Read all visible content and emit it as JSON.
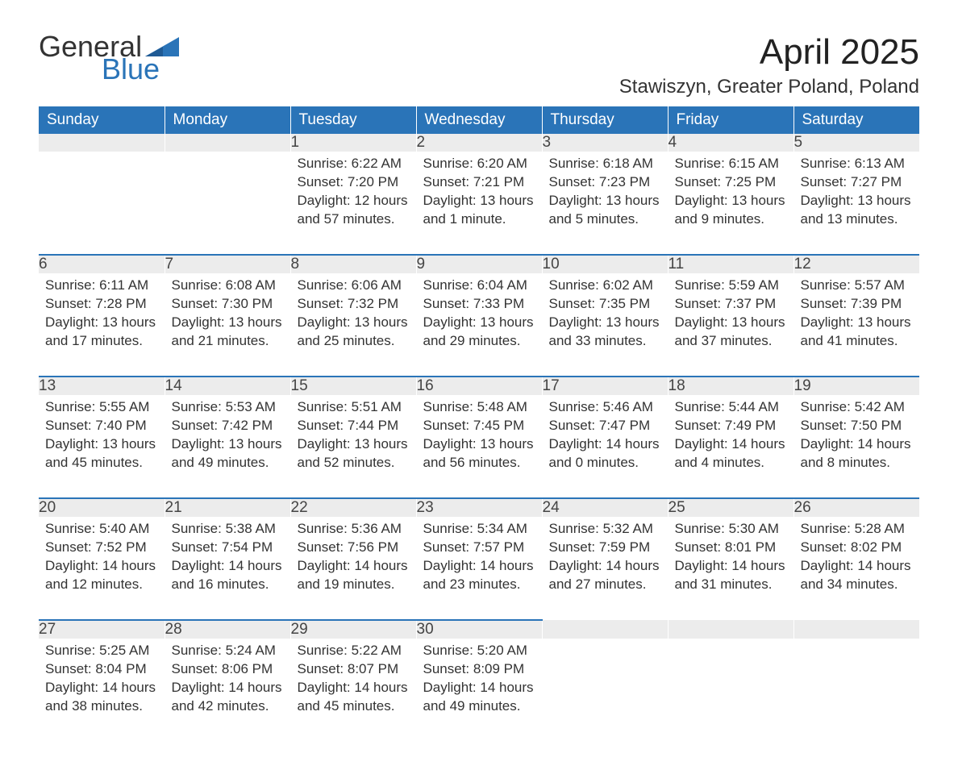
{
  "logo": {
    "general": "General",
    "blue": "Blue",
    "tri_color": "#2a74b8"
  },
  "title": "April 2025",
  "location": "Stawiszyn, Greater Poland, Poland",
  "colors": {
    "header_bg": "#2a74b8",
    "header_text": "#ffffff",
    "daynum_bg": "#ececec",
    "body_text": "#333333",
    "page_bg": "#ffffff"
  },
  "typography": {
    "title_fontsize": 44,
    "location_fontsize": 24,
    "header_fontsize": 19,
    "daynum_fontsize": 19,
    "cell_fontsize": 17
  },
  "day_headers": [
    "Sunday",
    "Monday",
    "Tuesday",
    "Wednesday",
    "Thursday",
    "Friday",
    "Saturday"
  ],
  "weeks": [
    [
      {
        "num": "",
        "sunrise": "",
        "sunset": "",
        "daylight1": "",
        "daylight2": ""
      },
      {
        "num": "",
        "sunrise": "",
        "sunset": "",
        "daylight1": "",
        "daylight2": ""
      },
      {
        "num": "1",
        "sunrise": "Sunrise: 6:22 AM",
        "sunset": "Sunset: 7:20 PM",
        "daylight1": "Daylight: 12 hours",
        "daylight2": "and 57 minutes."
      },
      {
        "num": "2",
        "sunrise": "Sunrise: 6:20 AM",
        "sunset": "Sunset: 7:21 PM",
        "daylight1": "Daylight: 13 hours",
        "daylight2": "and 1 minute."
      },
      {
        "num": "3",
        "sunrise": "Sunrise: 6:18 AM",
        "sunset": "Sunset: 7:23 PM",
        "daylight1": "Daylight: 13 hours",
        "daylight2": "and 5 minutes."
      },
      {
        "num": "4",
        "sunrise": "Sunrise: 6:15 AM",
        "sunset": "Sunset: 7:25 PM",
        "daylight1": "Daylight: 13 hours",
        "daylight2": "and 9 minutes."
      },
      {
        "num": "5",
        "sunrise": "Sunrise: 6:13 AM",
        "sunset": "Sunset: 7:27 PM",
        "daylight1": "Daylight: 13 hours",
        "daylight2": "and 13 minutes."
      }
    ],
    [
      {
        "num": "6",
        "sunrise": "Sunrise: 6:11 AM",
        "sunset": "Sunset: 7:28 PM",
        "daylight1": "Daylight: 13 hours",
        "daylight2": "and 17 minutes."
      },
      {
        "num": "7",
        "sunrise": "Sunrise: 6:08 AM",
        "sunset": "Sunset: 7:30 PM",
        "daylight1": "Daylight: 13 hours",
        "daylight2": "and 21 minutes."
      },
      {
        "num": "8",
        "sunrise": "Sunrise: 6:06 AM",
        "sunset": "Sunset: 7:32 PM",
        "daylight1": "Daylight: 13 hours",
        "daylight2": "and 25 minutes."
      },
      {
        "num": "9",
        "sunrise": "Sunrise: 6:04 AM",
        "sunset": "Sunset: 7:33 PM",
        "daylight1": "Daylight: 13 hours",
        "daylight2": "and 29 minutes."
      },
      {
        "num": "10",
        "sunrise": "Sunrise: 6:02 AM",
        "sunset": "Sunset: 7:35 PM",
        "daylight1": "Daylight: 13 hours",
        "daylight2": "and 33 minutes."
      },
      {
        "num": "11",
        "sunrise": "Sunrise: 5:59 AM",
        "sunset": "Sunset: 7:37 PM",
        "daylight1": "Daylight: 13 hours",
        "daylight2": "and 37 minutes."
      },
      {
        "num": "12",
        "sunrise": "Sunrise: 5:57 AM",
        "sunset": "Sunset: 7:39 PM",
        "daylight1": "Daylight: 13 hours",
        "daylight2": "and 41 minutes."
      }
    ],
    [
      {
        "num": "13",
        "sunrise": "Sunrise: 5:55 AM",
        "sunset": "Sunset: 7:40 PM",
        "daylight1": "Daylight: 13 hours",
        "daylight2": "and 45 minutes."
      },
      {
        "num": "14",
        "sunrise": "Sunrise: 5:53 AM",
        "sunset": "Sunset: 7:42 PM",
        "daylight1": "Daylight: 13 hours",
        "daylight2": "and 49 minutes."
      },
      {
        "num": "15",
        "sunrise": "Sunrise: 5:51 AM",
        "sunset": "Sunset: 7:44 PM",
        "daylight1": "Daylight: 13 hours",
        "daylight2": "and 52 minutes."
      },
      {
        "num": "16",
        "sunrise": "Sunrise: 5:48 AM",
        "sunset": "Sunset: 7:45 PM",
        "daylight1": "Daylight: 13 hours",
        "daylight2": "and 56 minutes."
      },
      {
        "num": "17",
        "sunrise": "Sunrise: 5:46 AM",
        "sunset": "Sunset: 7:47 PM",
        "daylight1": "Daylight: 14 hours",
        "daylight2": "and 0 minutes."
      },
      {
        "num": "18",
        "sunrise": "Sunrise: 5:44 AM",
        "sunset": "Sunset: 7:49 PM",
        "daylight1": "Daylight: 14 hours",
        "daylight2": "and 4 minutes."
      },
      {
        "num": "19",
        "sunrise": "Sunrise: 5:42 AM",
        "sunset": "Sunset: 7:50 PM",
        "daylight1": "Daylight: 14 hours",
        "daylight2": "and 8 minutes."
      }
    ],
    [
      {
        "num": "20",
        "sunrise": "Sunrise: 5:40 AM",
        "sunset": "Sunset: 7:52 PM",
        "daylight1": "Daylight: 14 hours",
        "daylight2": "and 12 minutes."
      },
      {
        "num": "21",
        "sunrise": "Sunrise: 5:38 AM",
        "sunset": "Sunset: 7:54 PM",
        "daylight1": "Daylight: 14 hours",
        "daylight2": "and 16 minutes."
      },
      {
        "num": "22",
        "sunrise": "Sunrise: 5:36 AM",
        "sunset": "Sunset: 7:56 PM",
        "daylight1": "Daylight: 14 hours",
        "daylight2": "and 19 minutes."
      },
      {
        "num": "23",
        "sunrise": "Sunrise: 5:34 AM",
        "sunset": "Sunset: 7:57 PM",
        "daylight1": "Daylight: 14 hours",
        "daylight2": "and 23 minutes."
      },
      {
        "num": "24",
        "sunrise": "Sunrise: 5:32 AM",
        "sunset": "Sunset: 7:59 PM",
        "daylight1": "Daylight: 14 hours",
        "daylight2": "and 27 minutes."
      },
      {
        "num": "25",
        "sunrise": "Sunrise: 5:30 AM",
        "sunset": "Sunset: 8:01 PM",
        "daylight1": "Daylight: 14 hours",
        "daylight2": "and 31 minutes."
      },
      {
        "num": "26",
        "sunrise": "Sunrise: 5:28 AM",
        "sunset": "Sunset: 8:02 PM",
        "daylight1": "Daylight: 14 hours",
        "daylight2": "and 34 minutes."
      }
    ],
    [
      {
        "num": "27",
        "sunrise": "Sunrise: 5:25 AM",
        "sunset": "Sunset: 8:04 PM",
        "daylight1": "Daylight: 14 hours",
        "daylight2": "and 38 minutes."
      },
      {
        "num": "28",
        "sunrise": "Sunrise: 5:24 AM",
        "sunset": "Sunset: 8:06 PM",
        "daylight1": "Daylight: 14 hours",
        "daylight2": "and 42 minutes."
      },
      {
        "num": "29",
        "sunrise": "Sunrise: 5:22 AM",
        "sunset": "Sunset: 8:07 PM",
        "daylight1": "Daylight: 14 hours",
        "daylight2": "and 45 minutes."
      },
      {
        "num": "30",
        "sunrise": "Sunrise: 5:20 AM",
        "sunset": "Sunset: 8:09 PM",
        "daylight1": "Daylight: 14 hours",
        "daylight2": "and 49 minutes."
      },
      {
        "num": "",
        "sunrise": "",
        "sunset": "",
        "daylight1": "",
        "daylight2": ""
      },
      {
        "num": "",
        "sunrise": "",
        "sunset": "",
        "daylight1": "",
        "daylight2": ""
      },
      {
        "num": "",
        "sunrise": "",
        "sunset": "",
        "daylight1": "",
        "daylight2": ""
      }
    ]
  ]
}
